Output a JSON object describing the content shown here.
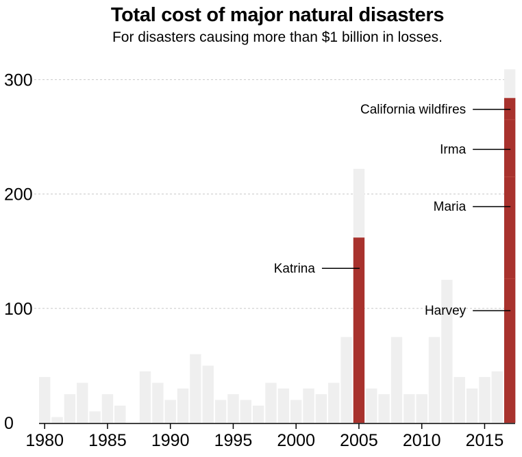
{
  "chart_data": {
    "type": "bar",
    "title": "Total cost of major natural disasters",
    "subtitle": "For disasters causing more than $1 billion in losses.",
    "xlabel": "",
    "ylabel": "",
    "ylim": [
      0,
      310
    ],
    "grid": true,
    "y_ticks": [
      0,
      100,
      200,
      300
    ],
    "x_ticks": [
      1980,
      1985,
      1990,
      1995,
      2000,
      2005,
      2010,
      2015
    ],
    "categories": [
      1980,
      1981,
      1982,
      1983,
      1984,
      1985,
      1986,
      1987,
      1988,
      1989,
      1990,
      1991,
      1992,
      1993,
      1994,
      1995,
      1996,
      1997,
      1998,
      1999,
      2000,
      2001,
      2002,
      2003,
      2004,
      2005,
      2006,
      2007,
      2008,
      2009,
      2010,
      2011,
      2012,
      2013,
      2014,
      2015,
      2016,
      2017
    ],
    "series": [
      {
        "values": [
          40,
          5,
          25,
          35,
          10,
          25,
          15,
          0,
          45,
          35,
          20,
          30,
          60,
          50,
          20,
          25,
          20,
          15,
          35,
          30,
          20,
          30,
          25,
          35,
          75,
          60,
          30,
          25,
          75,
          25,
          25,
          75,
          125,
          40,
          30,
          40,
          45,
          25
        ]
      },
      {
        "values": [
          0,
          0,
          0,
          0,
          0,
          0,
          0,
          0,
          0,
          0,
          0,
          0,
          0,
          0,
          0,
          0,
          0,
          0,
          0,
          0,
          0,
          0,
          0,
          0,
          0,
          162,
          0,
          0,
          0,
          0,
          0,
          0,
          0,
          0,
          0,
          0,
          0,
          284
        ]
      }
    ],
    "annotations": [
      {
        "label": "Katrina",
        "x": 2005,
        "y": 135
      },
      {
        "label": "California wildfires",
        "x": 2017,
        "y": 274
      },
      {
        "label": "Irma",
        "x": 2017,
        "y": 239
      },
      {
        "label": "Maria",
        "x": 2017,
        "y": 189
      },
      {
        "label": "Harvey",
        "x": 2017,
        "y": 98
      }
    ],
    "segment_boundaries": [
      {
        "x": 2017,
        "values": [
          126,
          215,
          265
        ]
      }
    ],
    "colors": {
      "bar": "#efefef",
      "highlight": "#a8322d",
      "grid": "#c8c8c8",
      "axis": "#000000"
    }
  }
}
